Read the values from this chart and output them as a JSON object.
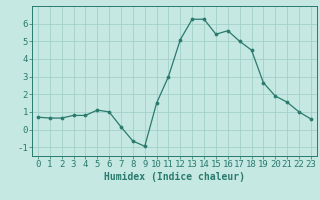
{
  "x": [
    0,
    1,
    2,
    3,
    4,
    5,
    6,
    7,
    8,
    9,
    10,
    11,
    12,
    13,
    14,
    15,
    16,
    17,
    18,
    19,
    20,
    21,
    22,
    23
  ],
  "y": [
    0.7,
    0.65,
    0.65,
    0.8,
    0.8,
    1.1,
    1.0,
    0.15,
    -0.65,
    -0.95,
    1.5,
    3.0,
    5.1,
    6.25,
    6.25,
    5.4,
    5.6,
    5.0,
    4.5,
    2.65,
    1.9,
    1.55,
    1.0,
    0.6
  ],
  "line_color": "#2a7a6e",
  "marker_color": "#2a7a6e",
  "bg_color": "#c5e8e2",
  "grid_color": "#9eccc5",
  "xlabel": "Humidex (Indice chaleur)",
  "ylim": [
    -1.5,
    7.0
  ],
  "xlim": [
    -0.5,
    23.5
  ],
  "yticks": [
    -1,
    0,
    1,
    2,
    3,
    4,
    5,
    6
  ],
  "xtick_labels": [
    "0",
    "1",
    "2",
    "3",
    "4",
    "5",
    "6",
    "7",
    "8",
    "9",
    "10",
    "11",
    "12",
    "13",
    "14",
    "15",
    "16",
    "17",
    "18",
    "19",
    "20",
    "21",
    "22",
    "23"
  ],
  "tick_color": "#2a7a6e",
  "label_fontsize": 7,
  "tick_fontsize": 6.5
}
